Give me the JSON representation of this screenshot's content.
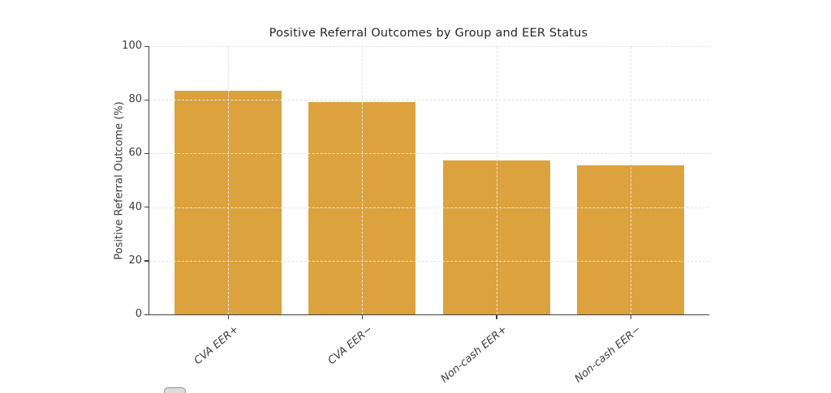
{
  "figure": {
    "background": "#ffffff"
  },
  "chart_data": {
    "type": "bar",
    "title": "Positive Referral Outcomes by Group and EER Status",
    "xlabel": "",
    "ylabel": "Positive Referral Outcome (%)",
    "categories": [
      "CVA EER+",
      "CVA EER−",
      "Non-cash EER+",
      "Non-cash EER−"
    ],
    "values": [
      83.3,
      79.2,
      57.4,
      55.6
    ],
    "ylim": [
      0,
      100
    ],
    "yticks": [
      0,
      20,
      40,
      60,
      80,
      100
    ],
    "bar_color": "#dca23d",
    "axis_color": "#3f3f3f",
    "tick_label_color": "#3a3a3a",
    "title_color": "#262626",
    "grid": {
      "visible": true,
      "style": "dashed",
      "color": "#e3e3e3",
      "axes": "both",
      "drawn_above_bars": true
    },
    "xtick_label_style": "italic, rotated ~40deg",
    "legend_box_cutoff_visible_bottom_left": true
  }
}
